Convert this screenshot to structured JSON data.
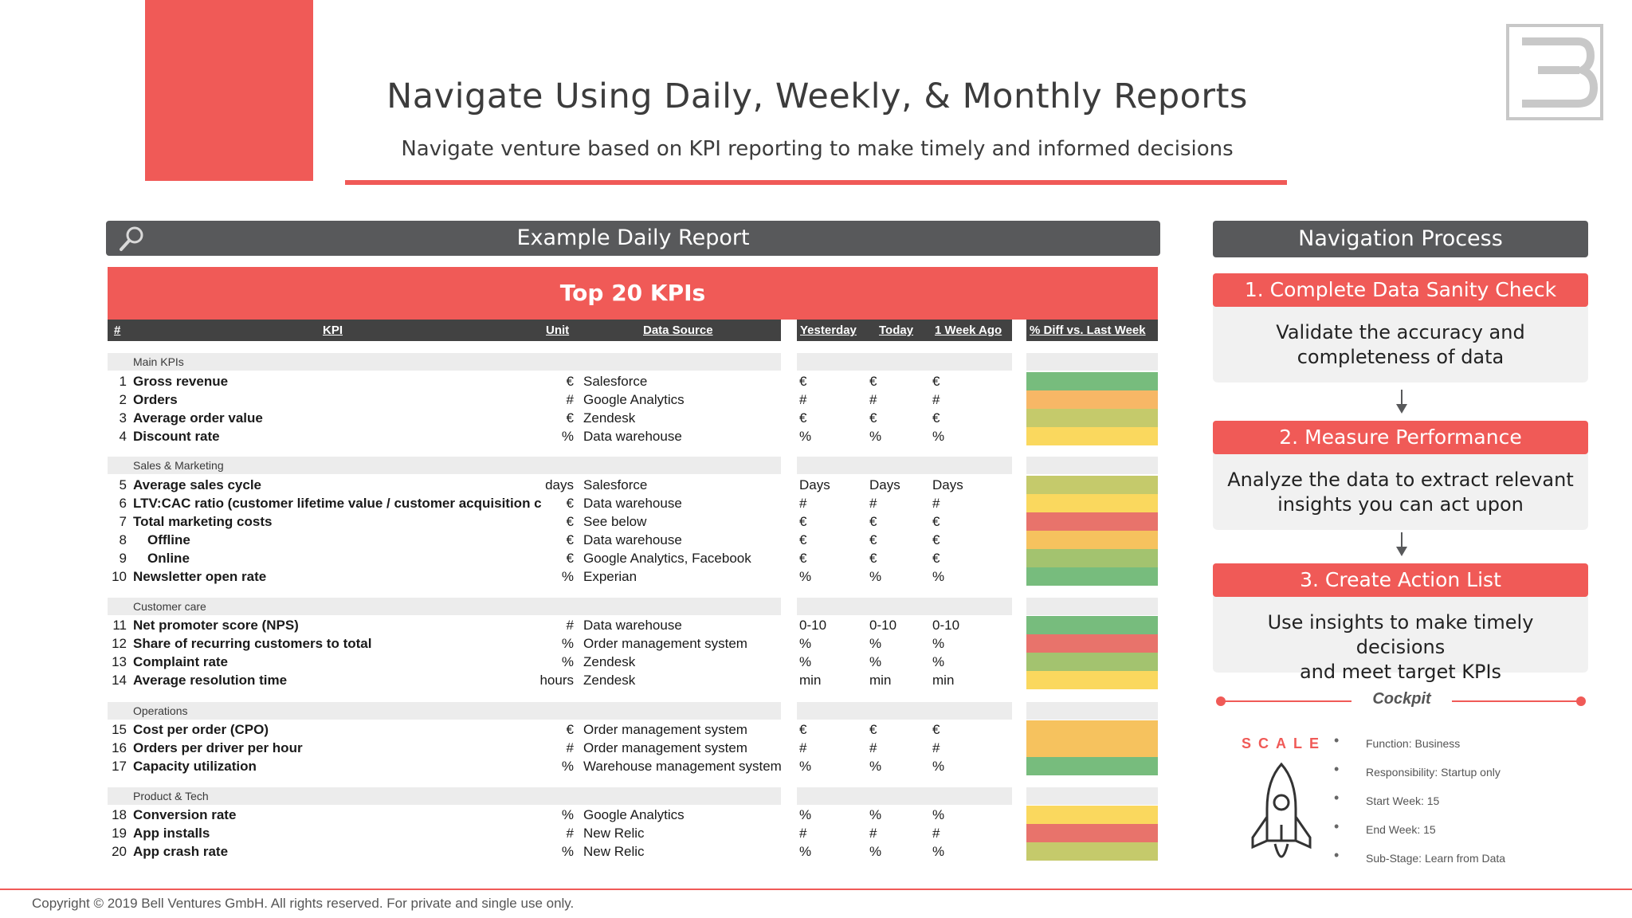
{
  "header": {
    "title": "Navigate Using Daily, Weekly, & Monthly Reports",
    "subtitle": "Navigate venture based on KPI reporting to make timely and informed decisions"
  },
  "report": {
    "title": "Example Daily Report",
    "banner": "Top 20 KPIs",
    "columns": {
      "num": "#",
      "kpi": "KPI",
      "unit": "Unit",
      "source": "Data Source",
      "yesterday": "Yesterday",
      "today": "Today",
      "week_ago": "1 Week Ago",
      "diff": "% Diff vs. Last Week"
    },
    "sections": [
      {
        "name": "Main KPIs"
      },
      {
        "name": "Sales & Marketing"
      },
      {
        "name": "Customer care"
      },
      {
        "name": "Operations"
      },
      {
        "name": "Product & Tech"
      }
    ],
    "rows": [
      {
        "num": "1",
        "kpi": "Gross revenue",
        "unit": "€",
        "source": "Salesforce",
        "y": "€",
        "t": "€",
        "w": "€",
        "diff_color": "#77bc7d"
      },
      {
        "num": "2",
        "kpi": "Orders",
        "unit": "#",
        "source": "Google Analytics",
        "y": "#",
        "t": "#",
        "w": "#",
        "diff_color": "#f7b766"
      },
      {
        "num": "3",
        "kpi": "Average order value",
        "unit": "€",
        "source": "Zendesk",
        "y": "€",
        "t": "€",
        "w": "€",
        "diff_color": "#c5ca6b"
      },
      {
        "num": "4",
        "kpi": "Discount rate",
        "unit": "%",
        "source": "Data warehouse",
        "y": "%",
        "t": "%",
        "w": "%",
        "diff_color": "#fad85e"
      },
      {
        "num": "5",
        "kpi": "Average sales cycle",
        "unit": "days",
        "source": "Salesforce",
        "y": "Days",
        "t": "Days",
        "w": "Days",
        "diff_color": "#c5ca6b"
      },
      {
        "num": "6",
        "kpi": "LTV:CAC ratio (customer lifetime value / customer acquisition cost)",
        "unit": "€",
        "source": "Data warehouse",
        "y": "#",
        "t": "#",
        "w": "#",
        "diff_color": "#fad85e"
      },
      {
        "num": "7",
        "kpi": "Total marketing costs",
        "unit": "€",
        "source": "See below",
        "y": "€",
        "t": "€",
        "w": "€",
        "diff_color": "#e8736b"
      },
      {
        "num": "8",
        "kpi": "Offline",
        "unit": "€",
        "source": "Data warehouse",
        "y": "€",
        "t": "€",
        "w": "€",
        "diff_color": "#f6c25e"
      },
      {
        "num": "9",
        "kpi": "Online",
        "unit": "€",
        "source": "Google Analytics, Facebook",
        "y": "€",
        "t": "€",
        "w": "€",
        "diff_color": "#a3c36f"
      },
      {
        "num": "10",
        "kpi": "Newsletter open rate",
        "unit": "%",
        "source": "Experian",
        "y": "%",
        "t": "%",
        "w": "%",
        "diff_color": "#77bc7d"
      },
      {
        "num": "11",
        "kpi": "Net promoter score (NPS)",
        "unit": "#",
        "source": "Data warehouse",
        "y": "0-10",
        "t": "0-10",
        "w": "0-10",
        "diff_color": "#77bc7d"
      },
      {
        "num": "12",
        "kpi": "Share of recurring customers to total",
        "unit": "%",
        "source": "Order management system",
        "y": "%",
        "t": "%",
        "w": "%",
        "diff_color": "#e8736b"
      },
      {
        "num": "13",
        "kpi": "Complaint rate",
        "unit": "%",
        "source": "Zendesk",
        "y": "%",
        "t": "%",
        "w": "%",
        "diff_color": "#a3c36f"
      },
      {
        "num": "14",
        "kpi": "Average resolution time",
        "unit": "hours",
        "source": "Zendesk",
        "y": "min",
        "t": "min",
        "w": "min",
        "diff_color": "#fad85e"
      },
      {
        "num": "15",
        "kpi": "Cost per order (CPO)",
        "unit": "€",
        "source": "Order management system",
        "y": "€",
        "t": "€",
        "w": "€",
        "diff_color": "#f6c25e"
      },
      {
        "num": "16",
        "kpi": "Orders per driver per hour",
        "unit": "#",
        "source": "Order management system",
        "y": "#",
        "t": "#",
        "w": "#",
        "diff_color": "#f6c25e"
      },
      {
        "num": "17",
        "kpi": "Capacity utilization",
        "unit": "%",
        "source": "Warehouse management system",
        "y": "%",
        "t": "%",
        "w": "%",
        "diff_color": "#77bc7d"
      },
      {
        "num": "18",
        "kpi": "Conversion rate",
        "unit": "%",
        "source": "Google Analytics",
        "y": "%",
        "t": "%",
        "w": "%",
        "diff_color": "#fad85e"
      },
      {
        "num": "19",
        "kpi": "App installs",
        "unit": "#",
        "source": "New Relic",
        "y": "#",
        "t": "#",
        "w": "#",
        "diff_color": "#e8736b"
      },
      {
        "num": "20",
        "kpi": "App crash rate",
        "unit": "%",
        "source": "New Relic",
        "y": "%",
        "t": "%",
        "w": "%",
        "diff_color": "#c5ca6b"
      }
    ]
  },
  "navigation": {
    "title": "Navigation Process",
    "steps": [
      {
        "title": "1. Complete Data Sanity Check",
        "body_1": "Validate the accuracy and",
        "body_2": "completeness of data"
      },
      {
        "title": "2. Measure Performance",
        "body_1": "Analyze the data to extract relevant",
        "body_2": "insights you can act upon"
      },
      {
        "title": "3. Create Action List",
        "body_1": "Use insights to make timely decisions",
        "body_2": "and meet target KPIs"
      }
    ]
  },
  "cockpit": {
    "label": "Cockpit",
    "scale": "SCALE",
    "meta": [
      "Function: Business",
      "Responsibility: Startup only",
      "Start Week: 15",
      "End Week: 15",
      "Sub-Stage: Learn from Data"
    ]
  },
  "footer": {
    "copyright": "Copyright © 2019 Bell Ventures GmbH. All rights reserved. For private and single use only."
  },
  "colors": {
    "accent": "#f05a57",
    "dark": "#58595b",
    "green": "#77bc7d",
    "yellow": "#fad85e",
    "orange": "#f7b766",
    "red": "#e8736b"
  }
}
